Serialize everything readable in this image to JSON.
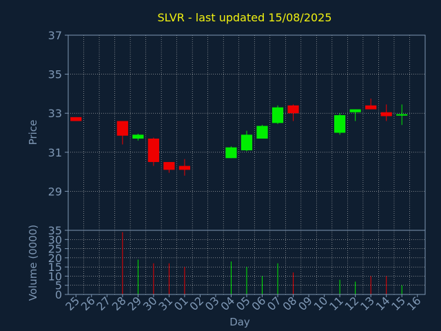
{
  "colors": {
    "background": "#0f1e30",
    "axis_text": "#7f98b5",
    "title": "#f1f111",
    "grid": "#c8c8c8",
    "up": "#00ee00",
    "down": "#ee0000"
  },
  "chart_data": [
    {
      "type": "candlestick",
      "title": "SLVR - last updated 15/08/2025",
      "ylabel": "Price",
      "xlabel": "",
      "ylim": [
        27,
        37
      ],
      "yticks": [
        29,
        31,
        33,
        35,
        37
      ],
      "grid": true,
      "categories": [
        "25",
        "26",
        "27",
        "28",
        "29",
        "30",
        "31",
        "01",
        "02",
        "03",
        "04",
        "05",
        "06",
        "07",
        "08",
        "09",
        "10",
        "11",
        "12",
        "13",
        "14",
        "15",
        "16"
      ],
      "candles": [
        {
          "day": "25",
          "open": 32.8,
          "high": 32.8,
          "low": 32.6,
          "close": 32.6
        },
        {
          "day": "28",
          "open": 32.6,
          "high": 32.6,
          "low": 31.4,
          "close": 31.85
        },
        {
          "day": "29",
          "open": 31.7,
          "high": 31.95,
          "low": 31.6,
          "close": 31.9
        },
        {
          "day": "30",
          "open": 31.7,
          "high": 31.75,
          "low": 30.3,
          "close": 30.5
        },
        {
          "day": "31",
          "open": 30.5,
          "high": 30.5,
          "low": 29.95,
          "close": 30.1
        },
        {
          "day": "01",
          "open": 30.3,
          "high": 30.65,
          "low": 29.8,
          "close": 30.1
        },
        {
          "day": "04",
          "open": 30.7,
          "high": 31.3,
          "low": 30.7,
          "close": 31.25
        },
        {
          "day": "05",
          "open": 31.1,
          "high": 32.1,
          "low": 31.05,
          "close": 31.9
        },
        {
          "day": "06",
          "open": 31.7,
          "high": 32.4,
          "low": 31.7,
          "close": 32.35
        },
        {
          "day": "07",
          "open": 32.5,
          "high": 33.4,
          "low": 32.45,
          "close": 33.3
        },
        {
          "day": "08",
          "open": 33.4,
          "high": 33.45,
          "low": 32.6,
          "close": 33.0
        },
        {
          "day": "11",
          "open": 32.0,
          "high": 33.0,
          "low": 31.9,
          "close": 32.9
        },
        {
          "day": "12",
          "open": 33.05,
          "high": 33.2,
          "low": 32.6,
          "close": 33.2
        },
        {
          "day": "13",
          "open": 33.4,
          "high": 33.75,
          "low": 33.2,
          "close": 33.2
        },
        {
          "day": "14",
          "open": 33.05,
          "high": 33.45,
          "low": 32.6,
          "close": 32.85
        },
        {
          "day": "15",
          "open": 32.9,
          "high": 33.45,
          "low": 32.4,
          "close": 32.95
        }
      ]
    },
    {
      "type": "bar",
      "ylabel": "Volume (0000)",
      "xlabel": "Day",
      "ylim": [
        0,
        35
      ],
      "yticks": [
        0,
        5,
        10,
        15,
        20,
        25,
        30,
        35
      ],
      "grid": true,
      "categories": [
        "25",
        "26",
        "27",
        "28",
        "29",
        "30",
        "31",
        "01",
        "02",
        "03",
        "04",
        "05",
        "06",
        "07",
        "08",
        "09",
        "10",
        "11",
        "12",
        "13",
        "14",
        "15",
        "16"
      ],
      "bars": [
        {
          "day": "28",
          "value": 34,
          "direction": "down"
        },
        {
          "day": "29",
          "value": 19,
          "direction": "up"
        },
        {
          "day": "30",
          "value": 17,
          "direction": "down"
        },
        {
          "day": "31",
          "value": 17,
          "direction": "down"
        },
        {
          "day": "01",
          "value": 15,
          "direction": "down"
        },
        {
          "day": "04",
          "value": 18,
          "direction": "up"
        },
        {
          "day": "05",
          "value": 15,
          "direction": "up"
        },
        {
          "day": "06",
          "value": 10,
          "direction": "up"
        },
        {
          "day": "07",
          "value": 17,
          "direction": "up"
        },
        {
          "day": "08",
          "value": 12,
          "direction": "down"
        },
        {
          "day": "11",
          "value": 8,
          "direction": "up"
        },
        {
          "day": "12",
          "value": 7,
          "direction": "up"
        },
        {
          "day": "13",
          "value": 10,
          "direction": "down"
        },
        {
          "day": "14",
          "value": 10,
          "direction": "down"
        },
        {
          "day": "15",
          "value": 5,
          "direction": "up"
        }
      ]
    }
  ]
}
